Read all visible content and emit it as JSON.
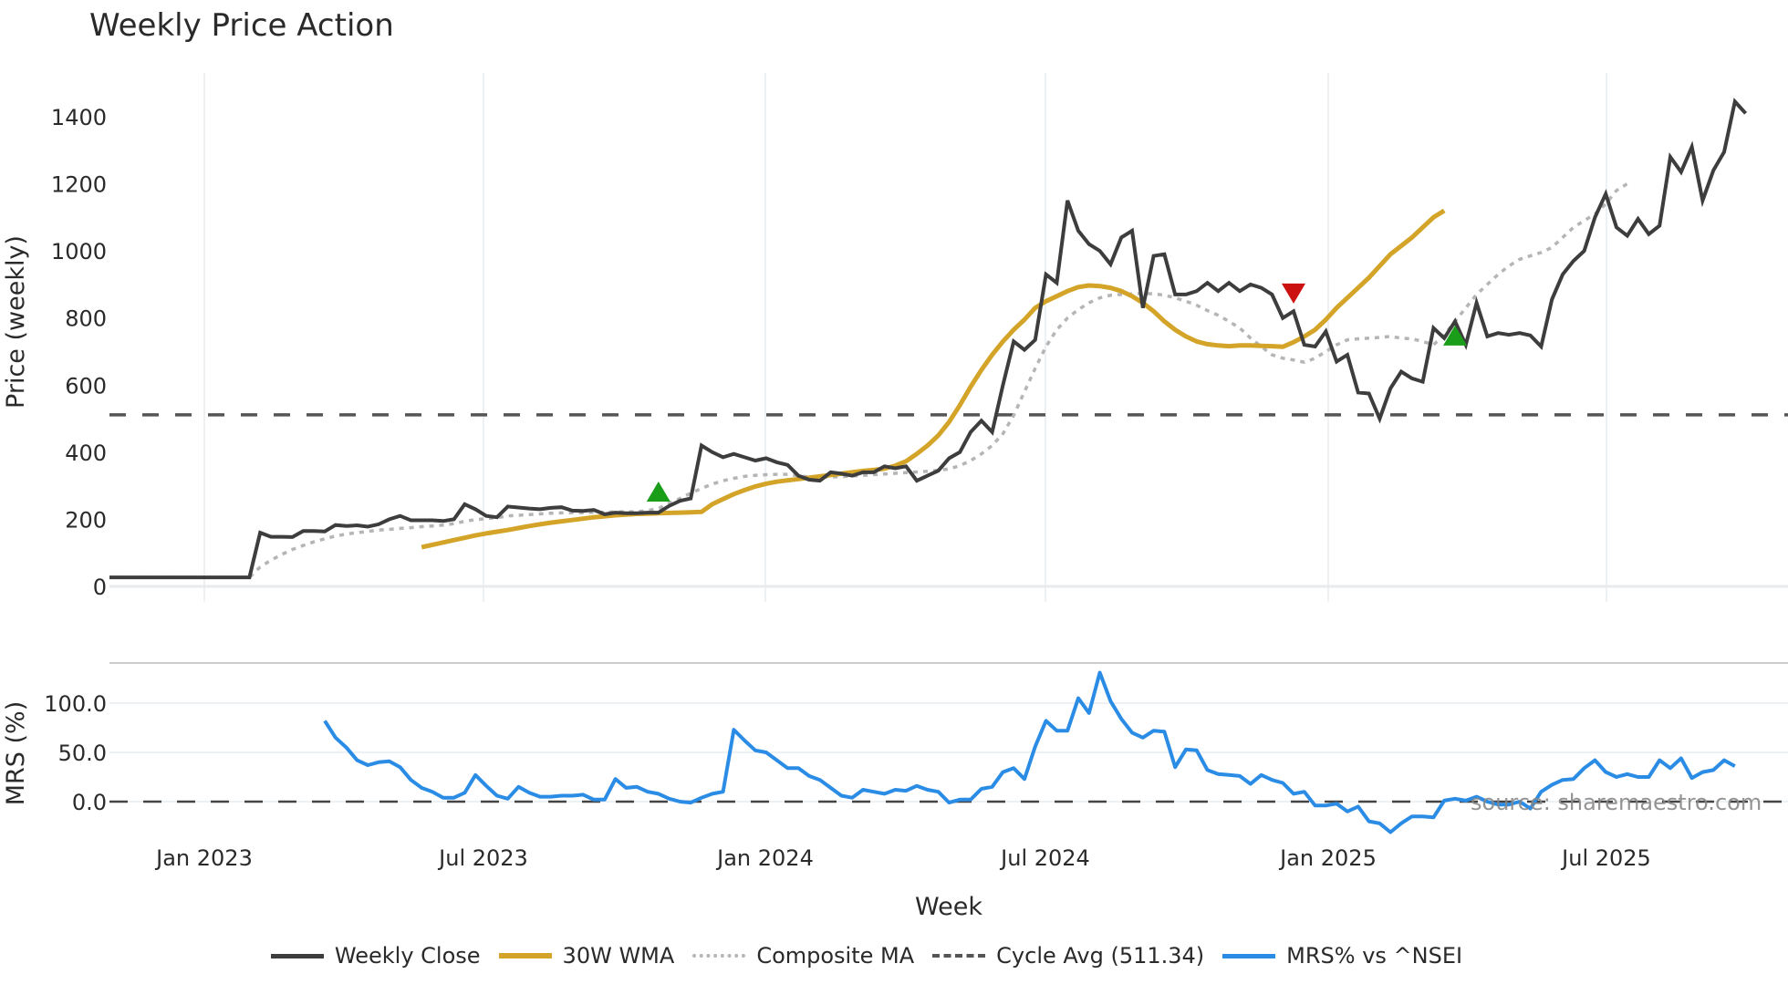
{
  "title": "Weekly Price Action",
  "source_note": "source: sharemaestro.com",
  "legend": [
    {
      "label": "Weekly Close",
      "color": "#3d3d3d",
      "style": "solid"
    },
    {
      "label": "30W WMA",
      "color": "#d4a429",
      "style": "solid"
    },
    {
      "label": "Composite MA",
      "color": "#b5b5b5",
      "style": "dotted"
    },
    {
      "label": "Cycle Avg (511.34)",
      "color": "#555555",
      "style": "dashed"
    },
    {
      "label": "MRS% vs ^NSEI",
      "color": "#2b8ce6",
      "style": "solid"
    }
  ],
  "chart_data": [
    {
      "type": "line",
      "title": "Weekly Price Action",
      "xlabel": "Week",
      "ylabel": "Price (weekly)",
      "ylim": [
        0,
        1500
      ],
      "yticks": [
        0,
        200,
        400,
        600,
        800,
        1000,
        1200,
        1400
      ],
      "xticks": [
        "Jan 2023",
        "Jul 2023",
        "Jan 2024",
        "Jul 2024",
        "Jan 2025",
        "Jul 2025"
      ],
      "grid": true,
      "legend_position": "bottom",
      "reference_lines": [
        {
          "name": "Cycle Avg",
          "value": 511.34,
          "style": "dashed"
        }
      ],
      "markers": [
        {
          "type": "buy",
          "shape": "triangle-up",
          "color": "#1a9e1a",
          "week_index": 51,
          "value": 280
        },
        {
          "type": "sell",
          "shape": "triangle-down",
          "color": "#cc1111",
          "week_index": 110,
          "value": 870
        },
        {
          "type": "buy",
          "shape": "triangle-up",
          "color": "#1a9e1a",
          "week_index": 125,
          "value": 745
        }
      ],
      "series": [
        {
          "name": "Weekly Close",
          "start_index": 0,
          "values": [
            27,
            27,
            27,
            27,
            27,
            27,
            27,
            27,
            27,
            27,
            27,
            27,
            27,
            27,
            160,
            148,
            148,
            147,
            165,
            165,
            164,
            183,
            180,
            182,
            178,
            185,
            200,
            210,
            197,
            197,
            197,
            195,
            200,
            245,
            230,
            210,
            206,
            238,
            235,
            232,
            230,
            234,
            236,
            226,
            225,
            228,
            215,
            220,
            218,
            218,
            220,
            220,
            240,
            255,
            262,
            420,
            400,
            385,
            395,
            385,
            375,
            382,
            370,
            362,
            330,
            318,
            315,
            340,
            336,
            330,
            340,
            340,
            358,
            352,
            358,
            315,
            330,
            345,
            382,
            400,
            460,
            494,
            460,
            600,
            730,
            705,
            735,
            930,
            905,
            1150,
            1060,
            1020,
            1000,
            960,
            1040,
            1060,
            830,
            985,
            990,
            870,
            870,
            880,
            905,
            880,
            905,
            880,
            900,
            890,
            870,
            800,
            820,
            720,
            715,
            760,
            670,
            690,
            578,
            575,
            500,
            590,
            640,
            620,
            610,
            770,
            740,
            790,
            720,
            845,
            745,
            755,
            750,
            755,
            748,
            715,
            855,
            930,
            970,
            1000,
            1100,
            1170,
            1070,
            1045,
            1095,
            1050,
            1075,
            1280,
            1235,
            1310,
            1150,
            1240,
            1295,
            1445,
            1410
          ]
        },
        {
          "name": "30W WMA",
          "start_index": 29,
          "values": [
            117,
            124,
            131,
            138,
            145,
            152,
            158,
            163,
            168,
            174,
            180,
            185,
            190,
            194,
            198,
            202,
            206,
            209,
            212,
            214,
            216,
            217,
            218,
            219,
            220,
            221,
            222,
            245,
            260,
            275,
            287,
            298,
            306,
            312,
            316,
            320,
            324,
            328,
            332,
            336,
            340,
            344,
            347,
            351,
            360,
            373,
            395,
            420,
            450,
            490,
            540,
            595,
            645,
            690,
            730,
            765,
            795,
            830,
            850,
            865,
            880,
            892,
            897,
            895,
            890,
            880,
            865,
            845,
            820,
            790,
            765,
            745,
            730,
            722,
            718,
            716,
            718,
            718,
            717,
            716,
            714,
            728,
            745,
            765,
            795,
            830,
            860,
            890,
            920,
            955,
            990,
            1015,
            1040,
            1070,
            1100,
            1120
          ]
        },
        {
          "name": "Composite MA",
          "start_index": 0,
          "values": [
            27,
            27,
            27,
            27,
            27,
            27,
            27,
            27,
            27,
            27,
            27,
            27,
            27,
            27,
            58,
            78,
            95,
            110,
            122,
            133,
            142,
            150,
            156,
            160,
            164,
            168,
            170,
            173,
            175,
            178,
            180,
            183,
            187,
            194,
            199,
            202,
            205,
            210,
            212,
            214,
            216,
            218,
            219,
            220,
            220,
            221,
            221,
            222,
            222,
            223,
            226,
            232,
            248,
            262,
            278,
            292,
            305,
            315,
            322,
            328,
            331,
            333,
            334,
            334,
            330,
            326,
            325,
            326,
            327,
            329,
            331,
            333,
            335,
            337,
            339,
            341,
            343,
            346,
            350,
            360,
            375,
            395,
            420,
            455,
            510,
            580,
            650,
            715,
            765,
            800,
            825,
            845,
            860,
            868,
            870,
            872,
            873,
            872,
            868,
            860,
            850,
            838,
            822,
            808,
            790,
            770,
            740,
            715,
            690,
            680,
            675,
            668,
            680,
            700,
            720,
            735,
            738,
            740,
            742,
            745,
            740,
            738,
            730,
            720,
            750,
            790,
            830,
            870,
            900,
            930,
            955,
            975,
            985,
            995,
            1010,
            1040,
            1070,
            1090,
            1110,
            1140,
            1180,
            1200
          ]
        },
        {
          "name": "Cycle Avg (511.34)",
          "constant": 511.34
        }
      ]
    },
    {
      "type": "line",
      "ylabel": "MRS (%)",
      "ylim": [
        -40,
        140
      ],
      "yticks": [
        0.0,
        50.0,
        100.0
      ],
      "reference_lines": [
        {
          "name": "zero",
          "value": 0,
          "style": "dashed"
        }
      ],
      "series": [
        {
          "name": "MRS% vs ^NSEI",
          "start_index": 20,
          "values": [
            82,
            65,
            55,
            42,
            37,
            40,
            41,
            35,
            22,
            14,
            10,
            4,
            4,
            9,
            27,
            16,
            6,
            3,
            15,
            9,
            5,
            5,
            6,
            6,
            7,
            2,
            2,
            23,
            14,
            15,
            10,
            8,
            3,
            0,
            -1,
            4,
            8,
            10,
            73,
            62,
            52,
            50,
            42,
            34,
            34,
            26,
            22,
            14,
            6,
            4,
            12,
            10,
            8,
            12,
            11,
            16,
            12,
            10,
            -1,
            2,
            2,
            13,
            15,
            30,
            34,
            23,
            56,
            82,
            72,
            72,
            105,
            90,
            131,
            102,
            84,
            70,
            65,
            72,
            71,
            35,
            53,
            52,
            32,
            28,
            27,
            26,
            18,
            27,
            22,
            19,
            8,
            10,
            -4,
            -4,
            -2,
            -10,
            -5,
            -20,
            -22,
            -31,
            -22,
            -15,
            -15,
            -16,
            1,
            3,
            1,
            5,
            0,
            -3,
            -3,
            0,
            -7,
            10,
            17,
            22,
            23,
            34,
            42,
            30,
            25,
            28,
            25,
            25,
            42,
            34,
            44,
            24,
            30,
            32,
            42,
            36
          ]
        }
      ]
    }
  ]
}
